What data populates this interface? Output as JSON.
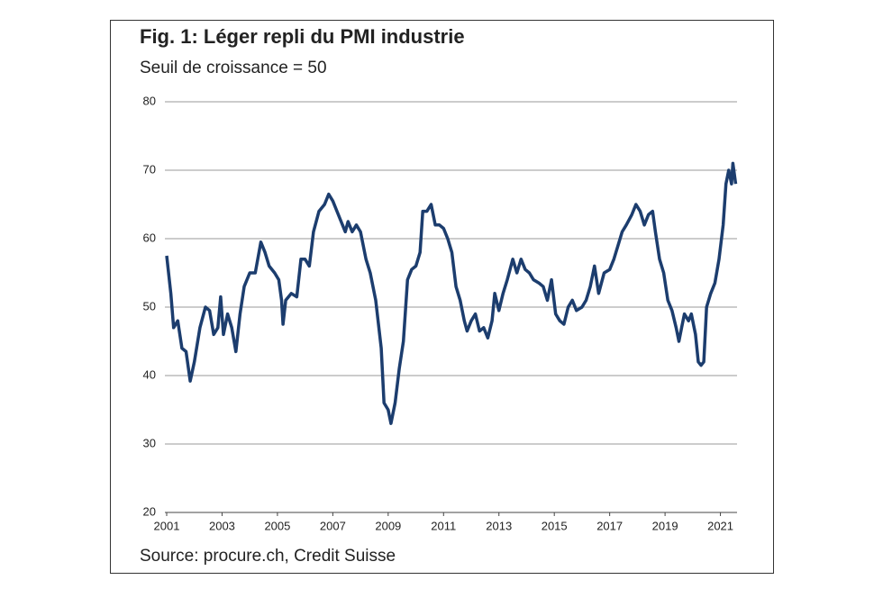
{
  "chart_data": {
    "type": "line",
    "title": "Fig. 1: Léger repli du PMI industrie",
    "subtitle": "Seuil de croissance = 50",
    "source": "Source: procure.ch, Credit Suisse",
    "xlim": [
      2001,
      2021.6
    ],
    "xticks": [
      2001,
      2003,
      2005,
      2007,
      2009,
      2011,
      2013,
      2015,
      2017,
      2019,
      2021
    ],
    "ylim": [
      20,
      80
    ],
    "yticks": [
      20,
      30,
      40,
      50,
      60,
      70,
      80
    ],
    "grid": true,
    "series": [
      {
        "color": "#1c3d6e",
        "x": [
          2001.0,
          2001.15,
          2001.25,
          2001.4,
          2001.55,
          2001.7,
          2001.85,
          2002.0,
          2002.2,
          2002.4,
          2002.55,
          2002.7,
          2002.85,
          2002.95,
          2003.05,
          2003.2,
          2003.35,
          2003.5,
          2003.65,
          2003.8,
          2004.0,
          2004.2,
          2004.4,
          2004.55,
          2004.7,
          2004.9,
          2005.05,
          2005.15,
          2005.2,
          2005.3,
          2005.5,
          2005.7,
          2005.85,
          2006.0,
          2006.15,
          2006.3,
          2006.5,
          2006.7,
          2006.85,
          2007.0,
          2007.15,
          2007.3,
          2007.45,
          2007.55,
          2007.7,
          2007.85,
          2008.0,
          2008.2,
          2008.35,
          2008.55,
          2008.75,
          2008.85,
          2009.0,
          2009.1,
          2009.25,
          2009.4,
          2009.55,
          2009.7,
          2009.85,
          2010.0,
          2010.15,
          2010.25,
          2010.4,
          2010.55,
          2010.7,
          2010.85,
          2011.0,
          2011.15,
          2011.3,
          2011.45,
          2011.6,
          2011.75,
          2011.85,
          2012.0,
          2012.15,
          2012.3,
          2012.45,
          2012.6,
          2012.75,
          2012.85,
          2013.0,
          2013.15,
          2013.3,
          2013.5,
          2013.65,
          2013.8,
          2013.95,
          2014.1,
          2014.25,
          2014.45,
          2014.6,
          2014.75,
          2014.9,
          2015.05,
          2015.2,
          2015.35,
          2015.5,
          2015.65,
          2015.8,
          2016.0,
          2016.15,
          2016.3,
          2016.45,
          2016.6,
          2016.8,
          2017.0,
          2017.15,
          2017.3,
          2017.45,
          2017.6,
          2017.8,
          2017.95,
          2018.1,
          2018.25,
          2018.4,
          2018.55,
          2018.65,
          2018.8,
          2018.95,
          2019.1,
          2019.25,
          2019.4,
          2019.5,
          2019.6,
          2019.7,
          2019.85,
          2019.95,
          2020.1,
          2020.2,
          2020.3,
          2020.4,
          2020.5,
          2020.65,
          2020.8,
          2020.95,
          2021.1,
          2021.2,
          2021.3,
          2021.4,
          2021.45,
          2021.55
        ],
        "values": [
          57.5,
          52,
          47,
          48,
          44,
          43.5,
          39.2,
          42,
          47,
          50,
          49.5,
          46,
          47,
          51.5,
          46,
          49,
          47,
          43.5,
          49,
          53,
          55,
          55,
          59.5,
          58,
          56,
          55,
          54,
          51,
          47.5,
          51,
          52,
          51.5,
          57,
          57,
          56,
          61,
          64,
          65,
          66.5,
          65.5,
          64,
          62.5,
          61,
          62.5,
          61,
          62,
          61,
          57,
          55,
          51,
          44,
          36,
          35,
          33,
          36,
          41,
          45,
          54,
          55.5,
          56,
          58,
          64,
          64,
          65,
          62,
          62,
          61.5,
          60,
          58,
          53,
          51,
          48,
          46.5,
          48,
          49,
          46.5,
          47,
          45.5,
          48,
          52,
          49.5,
          52,
          54,
          57,
          55,
          57,
          55.5,
          55,
          54,
          53.5,
          53,
          51,
          54,
          49,
          48,
          47.5,
          50,
          51,
          49.5,
          50,
          51,
          53,
          56,
          52,
          55,
          55.5,
          57,
          59,
          61,
          62,
          63.5,
          65,
          64,
          62,
          63.5,
          64,
          61,
          57,
          55,
          51,
          49.5,
          47,
          45,
          47,
          49,
          48,
          49,
          46,
          42,
          41.5,
          42,
          50,
          52,
          53.5,
          57,
          62,
          68,
          70,
          68,
          71,
          68
        ]
      }
    ]
  }
}
